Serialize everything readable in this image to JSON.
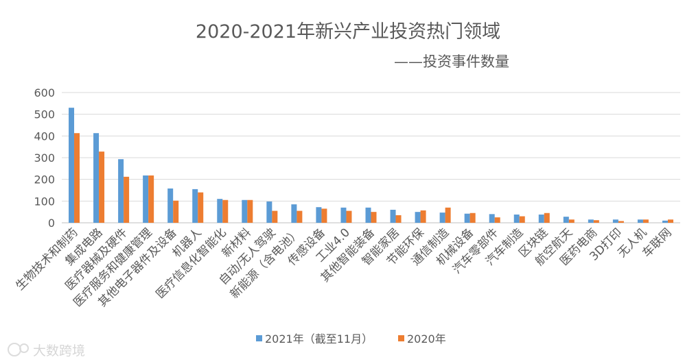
{
  "chart_data": {
    "type": "bar",
    "title": "2020-2021年新兴产业投资热门领域",
    "subtitle": "——投资事件数量",
    "xlabel": "",
    "ylabel": "",
    "ylim": [
      0,
      600
    ],
    "yticks": [
      "0",
      "100",
      "200",
      "300",
      "400",
      "500",
      "600"
    ],
    "grid": true,
    "legend_position": "bottom",
    "categories": [
      "生物技术和制药",
      "集成电路",
      "医疗器械及硬件",
      "医疗服务和健康管理",
      "其他电子器件及设备",
      "机器人",
      "医疗信息化智能化",
      "新材料",
      "自动/无人驾驶",
      "新能源（含电池）",
      "传感设备",
      "工业4.0",
      "其他智能装备",
      "智能家居",
      "节能环保",
      "通信制造",
      "机械设备",
      "汽车零部件",
      "汽车制造",
      "区块链",
      "航空航天",
      "医药电商",
      "3D打印",
      "无人机",
      "车联网"
    ],
    "series": [
      {
        "name": "2021年（截至11月）",
        "color": "#5b9bd5",
        "values": [
          530,
          413,
          293,
          218,
          158,
          155,
          110,
          105,
          98,
          85,
          72,
          70,
          70,
          60,
          50,
          47,
          42,
          40,
          38,
          38,
          28,
          15,
          15,
          15,
          10
        ]
      },
      {
        "name": "2020年",
        "color": "#ed7d31",
        "values": [
          413,
          328,
          212,
          218,
          102,
          140,
          105,
          105,
          55,
          55,
          65,
          55,
          50,
          35,
          57,
          70,
          45,
          25,
          30,
          45,
          15,
          12,
          8,
          15,
          15
        ]
      }
    ]
  },
  "watermark": {
    "text": "大数跨境"
  }
}
